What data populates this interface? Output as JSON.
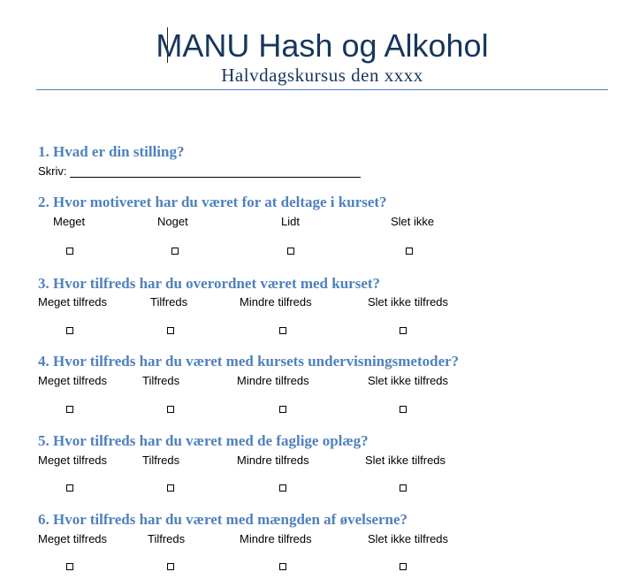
{
  "header": {
    "title": "MANU Hash og Alkohol",
    "subtitle": "Halvdagskursus den xxxx"
  },
  "questions": [
    {
      "text": "1. Hvad er din stilling?",
      "write_label": "Skriv:"
    },
    {
      "text": "2. Hvor motiveret har du været for at deltage i kurset?",
      "options": [
        "Meget",
        "Noget",
        "Lidt",
        "Slet ikke"
      ]
    },
    {
      "text": "3. Hvor tilfreds har du overordnet været med kurset?",
      "options": [
        "Meget tilfreds",
        "Tilfreds",
        "Mindre tilfreds",
        "Slet ikke tilfreds"
      ]
    },
    {
      "text": "4. Hvor tilfreds har du været med kursets undervisningsmetoder?",
      "options": [
        "Meget tilfreds",
        "Tilfreds",
        "Mindre tilfreds",
        "Slet ikke tilfreds"
      ]
    },
    {
      "text": "5. Hvor tilfreds har du været med de faglige oplæg?",
      "options": [
        "Meget tilfreds",
        "Tilfreds",
        "Mindre tilfreds",
        "Slet ikke tilfreds"
      ]
    },
    {
      "text": "6. Hvor tilfreds har du været med mængden af øvelserne?",
      "options": [
        "Meget tilfreds",
        "Tilfreds",
        "Mindre tilfreds",
        "Slet ikke tilfreds"
      ]
    }
  ]
}
